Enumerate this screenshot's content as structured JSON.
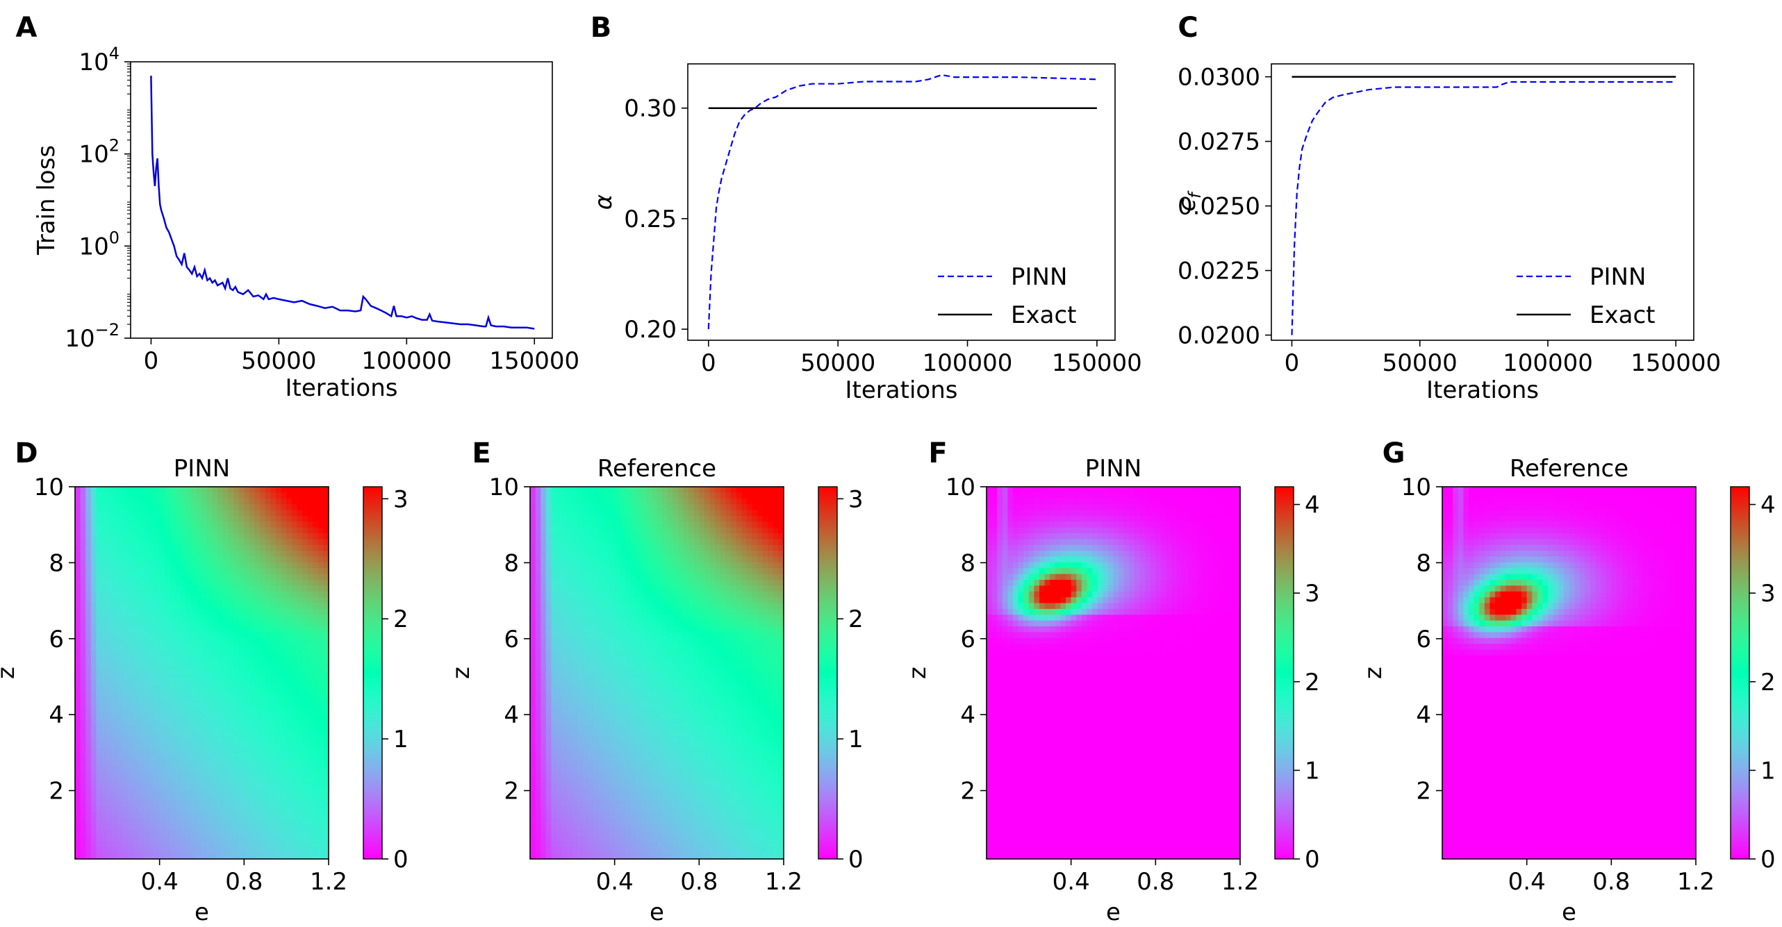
{
  "colors": {
    "pinn_line": "#0000ff",
    "exact_line": "#000000",
    "loss_line": "#0000dd",
    "axis": "#000000"
  },
  "colormap": "rainbow",
  "chart_data": [
    {
      "panel": "A",
      "type": "line",
      "title": "",
      "xlabel": "Iterations",
      "ylabel": "Train loss",
      "yscale": "log",
      "xlim": [
        -8000,
        157000
      ],
      "ylim": [
        0.01,
        10000
      ],
      "xticks": [
        0,
        50000,
        100000,
        150000
      ],
      "xtick_labels": [
        "0",
        "50000",
        "100000",
        "150000"
      ],
      "yticks": [
        0.01,
        1,
        100,
        10000
      ],
      "ytick_labels": [
        {
          "base": "10",
          "exp": "−2"
        },
        {
          "base": "10",
          "exp": "0"
        },
        {
          "base": "10",
          "exp": "2"
        },
        {
          "base": "10",
          "exp": "4"
        }
      ],
      "series": [
        {
          "name": "Train loss",
          "style": "solid",
          "x": [
            0,
            500,
            1000,
            1500,
            2000,
            2500,
            3000,
            3500,
            4000,
            5000,
            6000,
            7000,
            8000,
            9000,
            10000,
            11000,
            12000,
            13000,
            14000,
            15000,
            16000,
            17000,
            18000,
            19000,
            20000,
            21000,
            22000,
            23000,
            24000,
            25000,
            26000,
            27000,
            28000,
            29000,
            30000,
            31000,
            32000,
            33000,
            34000,
            36000,
            38000,
            40000,
            42000,
            44000,
            45000,
            46000,
            48000,
            50000,
            53000,
            56000,
            59000,
            62000,
            65000,
            68000,
            71000,
            74000,
            77000,
            80000,
            82000,
            83000,
            84000,
            86000,
            88000,
            90000,
            92000,
            94000,
            95000,
            96000,
            98000,
            100000,
            102000,
            104000,
            106000,
            108000,
            109000,
            110000,
            112000,
            115000,
            118000,
            121000,
            124000,
            127000,
            130000,
            131000,
            132000,
            133000,
            135000,
            138000,
            141000,
            144000,
            147000,
            150000
          ],
          "y": [
            5000,
            100,
            40,
            20,
            50,
            80,
            20,
            8,
            6,
            4,
            2.5,
            2,
            1.4,
            1.0,
            0.6,
            0.5,
            0.4,
            0.7,
            0.35,
            0.3,
            0.25,
            0.35,
            0.22,
            0.25,
            0.2,
            0.3,
            0.18,
            0.2,
            0.16,
            0.18,
            0.14,
            0.15,
            0.16,
            0.12,
            0.2,
            0.12,
            0.11,
            0.13,
            0.1,
            0.09,
            0.11,
            0.08,
            0.085,
            0.07,
            0.09,
            0.07,
            0.075,
            0.07,
            0.065,
            0.06,
            0.065,
            0.055,
            0.05,
            0.045,
            0.048,
            0.04,
            0.04,
            0.038,
            0.04,
            0.08,
            0.07,
            0.05,
            0.045,
            0.04,
            0.035,
            0.03,
            0.05,
            0.03,
            0.03,
            0.028,
            0.03,
            0.027,
            0.025,
            0.025,
            0.033,
            0.024,
            0.023,
            0.022,
            0.021,
            0.02,
            0.02,
            0.019,
            0.018,
            0.018,
            0.028,
            0.019,
            0.018,
            0.018,
            0.017,
            0.017,
            0.017,
            0.016
          ]
        }
      ]
    },
    {
      "panel": "B",
      "type": "line",
      "title": "",
      "xlabel": "Iterations",
      "ylabel": "α",
      "xlim": [
        -8000,
        157000
      ],
      "ylim": [
        0.195,
        0.32
      ],
      "xticks": [
        0,
        50000,
        100000,
        150000
      ],
      "xtick_labels": [
        "0",
        "50000",
        "100000",
        "150000"
      ],
      "yticks": [
        0.2,
        0.25,
        0.3
      ],
      "ytick_labels": [
        "0.20",
        "0.25",
        "0.30"
      ],
      "legend": "bottom-right",
      "series": [
        {
          "name": "PINN",
          "style": "dashed",
          "x": [
            0,
            1000,
            2000,
            3000,
            4000,
            5000,
            6000,
            8000,
            10000,
            12000,
            14000,
            16000,
            18000,
            20000,
            23000,
            26000,
            30000,
            35000,
            40000,
            50000,
            60000,
            70000,
            80000,
            85000,
            90000,
            95000,
            100000,
            120000,
            150000
          ],
          "y": [
            0.2,
            0.225,
            0.24,
            0.255,
            0.262,
            0.268,
            0.272,
            0.28,
            0.288,
            0.294,
            0.297,
            0.299,
            0.3,
            0.302,
            0.304,
            0.305,
            0.308,
            0.31,
            0.311,
            0.311,
            0.312,
            0.312,
            0.312,
            0.313,
            0.315,
            0.314,
            0.314,
            0.314,
            0.313
          ]
        },
        {
          "name": "Exact",
          "style": "solid",
          "x": [
            0,
            150000
          ],
          "y": [
            0.3,
            0.3
          ]
        }
      ]
    },
    {
      "panel": "C",
      "type": "line",
      "title": "",
      "xlabel": "Iterations",
      "ylabel": "c_f",
      "ylabel_main": "c",
      "ylabel_sub": "f",
      "xlim": [
        -8000,
        157000
      ],
      "ylim": [
        0.0198,
        0.0305
      ],
      "xticks": [
        0,
        50000,
        100000,
        150000
      ],
      "xtick_labels": [
        "0",
        "50000",
        "100000",
        "150000"
      ],
      "yticks": [
        0.02,
        0.0225,
        0.025,
        0.0275,
        0.03
      ],
      "ytick_labels": [
        "0.0200",
        "0.0225",
        "0.0250",
        "0.0275",
        "0.0300"
      ],
      "legend": "bottom-right",
      "series": [
        {
          "name": "PINN",
          "style": "dashed",
          "x": [
            0,
            1000,
            2000,
            3000,
            4000,
            6000,
            8000,
            10000,
            13000,
            16000,
            20000,
            25000,
            30000,
            40000,
            50000,
            60000,
            70000,
            80000,
            82000,
            85000,
            90000,
            100000,
            120000,
            150000
          ],
          "y": [
            0.02,
            0.0235,
            0.0255,
            0.0265,
            0.0272,
            0.0278,
            0.0283,
            0.0286,
            0.029,
            0.0292,
            0.0293,
            0.0294,
            0.0295,
            0.0296,
            0.0296,
            0.0296,
            0.0296,
            0.0296,
            0.0297,
            0.0298,
            0.0298,
            0.0298,
            0.0298,
            0.0298
          ]
        },
        {
          "name": "Exact",
          "style": "solid",
          "x": [
            0,
            150000
          ],
          "y": [
            0.03,
            0.03
          ]
        }
      ]
    },
    {
      "panel": "D",
      "type": "heatmap",
      "title": "PINN",
      "xlabel": "e",
      "ylabel": "z",
      "field": "alpha_field",
      "xlim": [
        0,
        1.2
      ],
      "ylim": [
        0.2,
        10
      ],
      "xticks": [
        0.4,
        0.8,
        1.2
      ],
      "xtick_labels": [
        "0.4",
        "0.8",
        "1.2"
      ],
      "yticks": [
        2,
        4,
        6,
        8,
        10
      ],
      "ytick_labels": [
        "2",
        "4",
        "6",
        "8",
        "10"
      ],
      "colorbar": {
        "min": 0,
        "max": 3.1,
        "ticks": [
          0,
          1,
          2,
          3
        ],
        "tick_labels": [
          "0",
          "1",
          "2",
          "3"
        ]
      }
    },
    {
      "panel": "E",
      "type": "heatmap",
      "title": "Reference",
      "xlabel": "e",
      "ylabel": "z",
      "field": "alpha_field",
      "xlim": [
        0,
        1.2
      ],
      "ylim": [
        0.2,
        10
      ],
      "xticks": [
        0.4,
        0.8,
        1.2
      ],
      "xtick_labels": [
        "0.4",
        "0.8",
        "1.2"
      ],
      "yticks": [
        2,
        4,
        6,
        8,
        10
      ],
      "ytick_labels": [
        "2",
        "4",
        "6",
        "8",
        "10"
      ],
      "colorbar": {
        "min": 0,
        "max": 3.1,
        "ticks": [
          0,
          1,
          2,
          3
        ],
        "tick_labels": [
          "0",
          "1",
          "2",
          "3"
        ]
      }
    },
    {
      "panel": "F",
      "type": "heatmap",
      "title": "PINN",
      "xlabel": "e",
      "ylabel": "z",
      "field": "peak_field",
      "peak_center": [
        0.32,
        7.2
      ],
      "xlim": [
        0,
        1.2
      ],
      "ylim": [
        0.2,
        10
      ],
      "xticks": [
        0.4,
        0.8,
        1.2
      ],
      "xtick_labels": [
        "0.4",
        "0.8",
        "1.2"
      ],
      "yticks": [
        2,
        4,
        6,
        8,
        10
      ],
      "ytick_labels": [
        "2",
        "4",
        "6",
        "8",
        "10"
      ],
      "colorbar": {
        "min": 0,
        "max": 4.2,
        "ticks": [
          0,
          1,
          2,
          3,
          4
        ],
        "tick_labels": [
          "0",
          "1",
          "2",
          "3",
          "4"
        ]
      }
    },
    {
      "panel": "G",
      "type": "heatmap",
      "title": "Reference",
      "xlabel": "e",
      "ylabel": "z",
      "field": "peak_field",
      "peak_center": [
        0.3,
        6.9
      ],
      "xlim": [
        0,
        1.2
      ],
      "ylim": [
        0.2,
        10
      ],
      "xticks": [
        0.4,
        0.8,
        1.2
      ],
      "xtick_labels": [
        "0.4",
        "0.8",
        "1.2"
      ],
      "yticks": [
        2,
        4,
        6,
        8,
        10
      ],
      "ytick_labels": [
        "2",
        "4",
        "6",
        "8",
        "10"
      ],
      "colorbar": {
        "min": 0,
        "max": 4.2,
        "ticks": [
          0,
          1,
          2,
          3,
          4
        ],
        "tick_labels": [
          "0",
          "1",
          "2",
          "3",
          "4"
        ]
      }
    }
  ]
}
